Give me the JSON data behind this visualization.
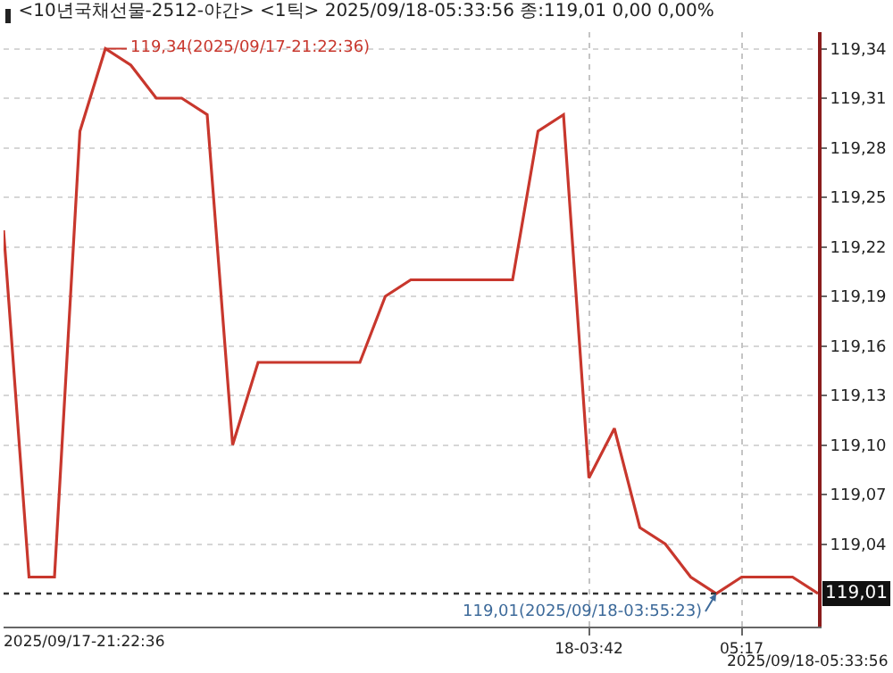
{
  "chart_data": {
    "type": "line",
    "title": "<10년국채선물-2512-야간> <1틱> 2025/09/18-05:33:56 종:119,01 0,00 0,00%",
    "categories": [
      null,
      null,
      null,
      null,
      null,
      null,
      null,
      null,
      null,
      null,
      null,
      null,
      null,
      null,
      null,
      null,
      null,
      null,
      null,
      null,
      null,
      null,
      null,
      "18-03:42",
      null,
      null,
      null,
      null,
      null,
      "05:17",
      null,
      null,
      null
    ],
    "series": [
      {
        "color": "#c8372d",
        "values": [
          119.23,
          119.02,
          119.02,
          119.29,
          119.34,
          119.33,
          119.31,
          119.31,
          119.3,
          119.1,
          119.15,
          119.15,
          119.15,
          119.15,
          119.15,
          119.19,
          119.2,
          119.2,
          119.2,
          119.2,
          119.2,
          119.29,
          119.3,
          119.08,
          119.11,
          119.05,
          119.04,
          119.02,
          119.01,
          119.02,
          119.02,
          119.02,
          119.01
        ]
      }
    ],
    "ylim": [
      118.99,
      119.35
    ],
    "yticks": [
      {
        "value": 119.04,
        "label": "119,04"
      },
      {
        "value": 119.07,
        "label": "119,07"
      },
      {
        "value": 119.1,
        "label": "119,10"
      },
      {
        "value": 119.13,
        "label": "119,13"
      },
      {
        "value": 119.16,
        "label": "119,16"
      },
      {
        "value": 119.19,
        "label": "119,19"
      },
      {
        "value": 119.22,
        "label": "119,22"
      },
      {
        "value": 119.25,
        "label": "119,25"
      },
      {
        "value": 119.28,
        "label": "119,28"
      },
      {
        "value": 119.31,
        "label": "119,31"
      },
      {
        "value": 119.34,
        "label": "119,34"
      }
    ],
    "ref_lines": [
      {
        "axis": "y",
        "value": 119.01,
        "label": "119,01",
        "color": "#333333",
        "line_style": "dotted"
      }
    ],
    "annotations": [
      "119,34(2025/09/17-21:22:36)",
      "119,01(2025/09/18-03:55:23)",
      "2025/09/17-21:22:36",
      "2025/09/18-05:33:56"
    ],
    "grid": true,
    "marker": "none",
    "line_style": "solid"
  }
}
